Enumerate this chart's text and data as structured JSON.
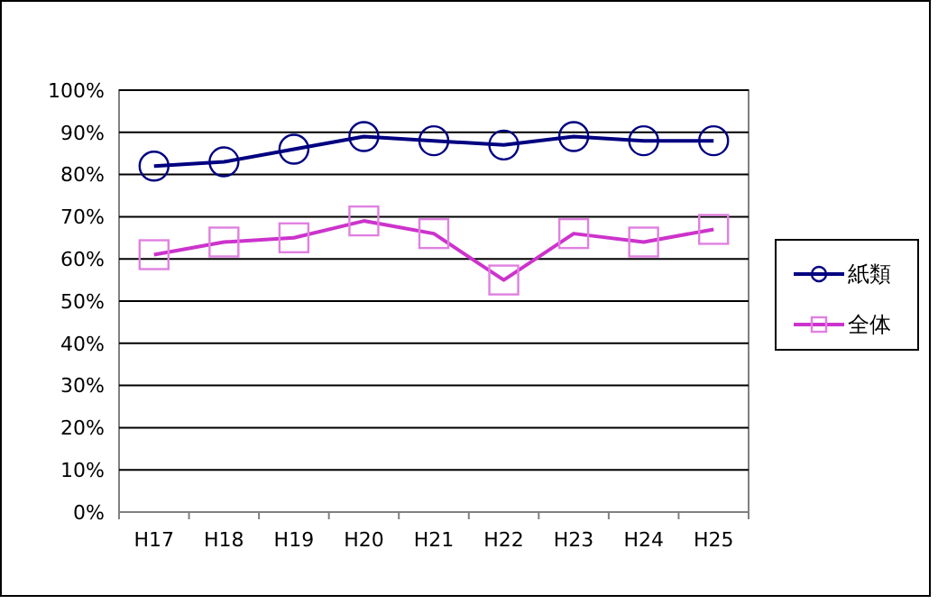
{
  "chart_data": {
    "type": "line",
    "categories": [
      "H17",
      "H18",
      "H19",
      "H20",
      "H21",
      "H22",
      "H23",
      "H24",
      "H25"
    ],
    "series": [
      {
        "name": "紙類",
        "color": "#000080",
        "marker": "circle",
        "values": [
          82,
          83,
          86,
          89,
          88,
          87,
          89,
          88,
          88
        ]
      },
      {
        "name": "全体",
        "color": "#cc33cc",
        "marker": "square",
        "values": [
          61,
          64,
          65,
          69,
          66,
          55,
          66,
          64,
          67
        ]
      }
    ],
    "ylim": [
      0,
      100
    ],
    "yticks": [
      {
        "value": 0,
        "label": "0%"
      },
      {
        "value": 10,
        "label": "10%"
      },
      {
        "value": 20,
        "label": "20%"
      },
      {
        "value": 30,
        "label": "30%"
      },
      {
        "value": 40,
        "label": "40%"
      },
      {
        "value": 50,
        "label": "50%"
      },
      {
        "value": 60,
        "label": "60%"
      },
      {
        "value": 70,
        "label": "70%"
      },
      {
        "value": 80,
        "label": "80%"
      },
      {
        "value": 90,
        "label": "90%"
      },
      {
        "value": 100,
        "label": "100%"
      }
    ],
    "grid": "y",
    "legend": "right"
  }
}
